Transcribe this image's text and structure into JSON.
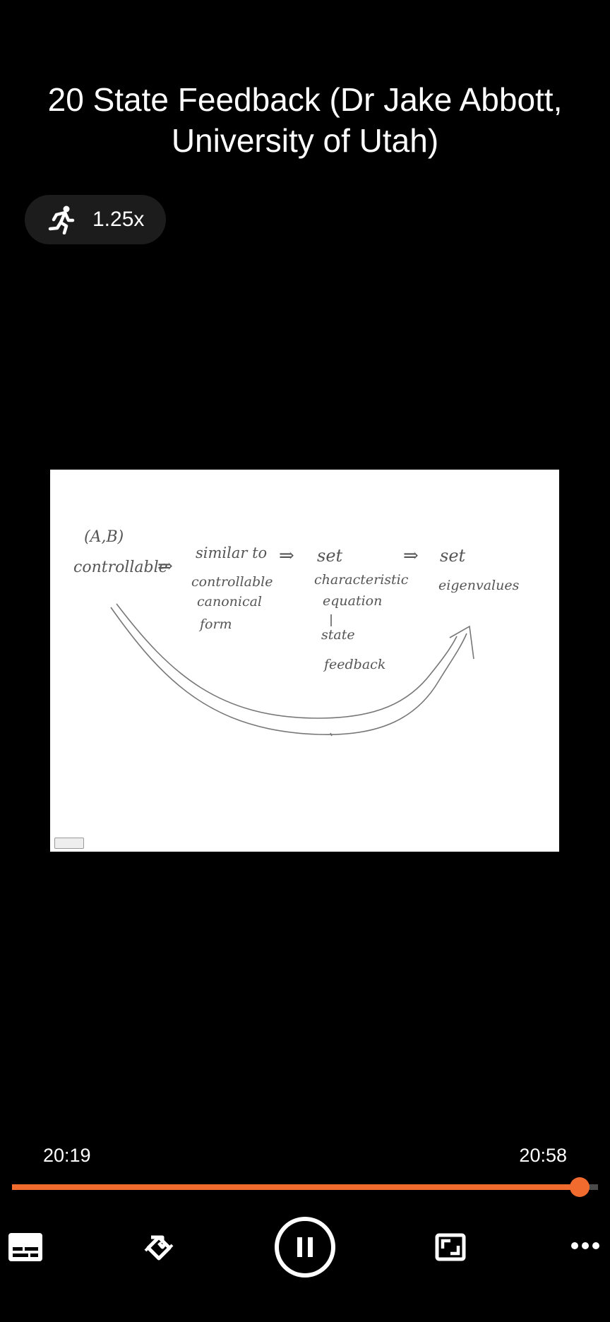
{
  "video": {
    "title": "20 State Feedback (Dr Jake Abbott, University of Utah)",
    "speed_label": "1.25x",
    "speed_icon": "running-person-icon"
  },
  "whiteboard": {
    "notes": {
      "ab": "(A,B)",
      "controllable": "controllable",
      "arrow": "⇒",
      "similar_to": "similar to",
      "controllable_canonical_form": [
        "controllable",
        "canonical",
        "form"
      ],
      "set_characteristic_equation": [
        "set",
        "characteristic",
        "equation"
      ],
      "state_feedback": [
        "state",
        "feedback"
      ],
      "set_eigenvalues": [
        "set",
        "eigenvalues"
      ]
    }
  },
  "player": {
    "current_time": "20:19",
    "total_time": "20:58",
    "progress_fraction": 0.969,
    "accent_color": "#f26b2e",
    "controls": {
      "subtitles_icon": "subtitles-icon",
      "rotate_icon": "rotate-screen-icon",
      "pause_icon": "pause-icon",
      "aspect_icon": "aspect-ratio-icon",
      "more_icon": "more-options-icon"
    }
  }
}
